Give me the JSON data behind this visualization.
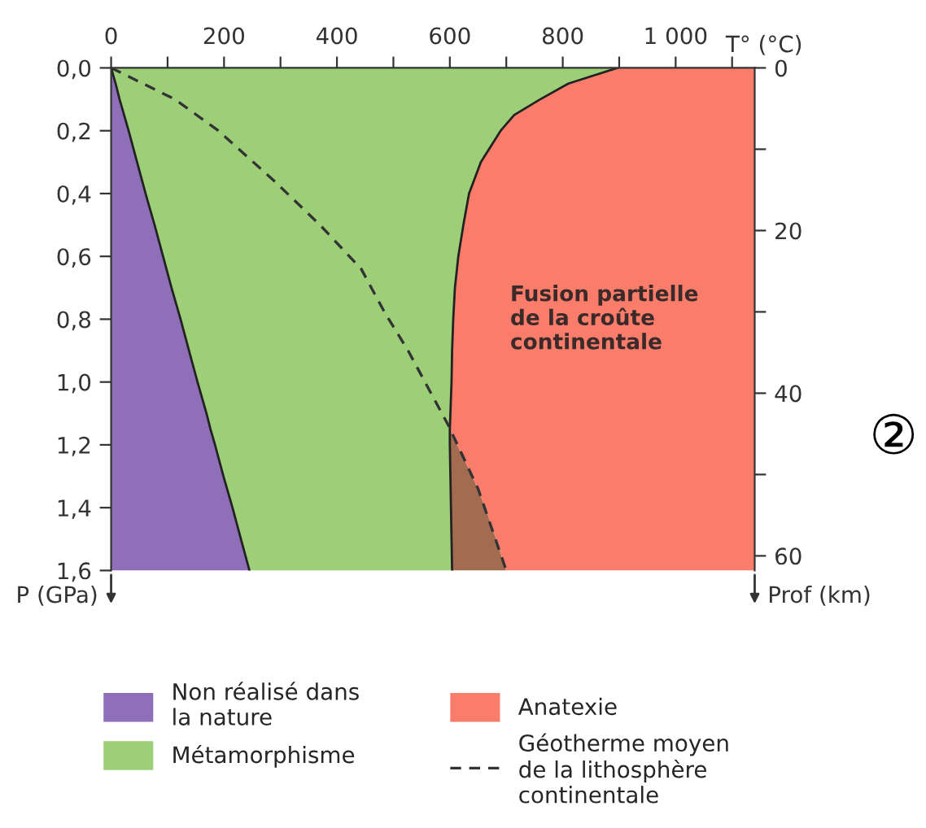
{
  "chart_data": {
    "type": "area",
    "orientation": "horizontal",
    "stacked": true,
    "x": [
      0,
      0.05,
      0.1,
      0.15,
      0.2,
      0.3,
      0.4,
      0.5,
      0.6,
      0.7,
      0.8,
      0.9,
      1.0,
      1.1,
      1.15,
      1.2,
      1.3,
      1.4,
      1.5,
      1.6
    ],
    "series": [
      {
        "name": "Non réalisé dans\nla nature",
        "color": "#8e6fb8",
        "values": [
          0,
          8,
          15,
          23,
          31,
          46,
          61,
          77,
          92,
          107,
          123,
          138,
          153,
          169,
          176,
          184,
          199,
          215,
          230,
          245
        ]
      },
      {
        "name": "Métamorphisme",
        "color": "#9dcf78",
        "values": [
          897,
          802,
          745,
          691,
          659,
          609,
          573,
          547,
          523,
          502,
          483,
          466,
          450,
          432,
          424,
          416,
          402,
          387,
          373,
          359
        ]
      },
      {
        "color": "#a36b50",
        "values": [
          0,
          0,
          0,
          0,
          0,
          0,
          0,
          0,
          0,
          0,
          0,
          0,
          0,
          0,
          0,
          13,
          39,
          61,
          79,
          96
        ]
      },
      {
        "name": "Anatexie",
        "color": "#f97d6a",
        "values": [
          243,
          330,
          380,
          426,
          450,
          485,
          506,
          516,
          525,
          531,
          534,
          536,
          537,
          539,
          540,
          527,
          500,
          477,
          458,
          440
        ]
      },
      {
        "name": "Géotherme moyen\nde la lithosphère\ncontinentale",
        "type": "line",
        "line_style": "dashed",
        "color": "#333333",
        "x": [
          0,
          0.1,
          0.2,
          0.36,
          0.5,
          0.64,
          0.78,
          0.9,
          1.14,
          1.34,
          1.6
        ],
        "values": [
          0,
          113,
          190,
          289,
          370,
          443,
          485,
          526,
          598,
          650,
          700
        ]
      }
    ],
    "xlabel": "T° (°C)",
    "ylabel": "P (GPa)",
    "y2label": "Prof (km)",
    "xlim": [
      0,
      1140
    ],
    "xticks": [
      0,
      {
        "value": 100,
        "label": null
      },
      200,
      {
        "value": 300,
        "label": null
      },
      400,
      {
        "value": 500,
        "label": null
      },
      600,
      {
        "value": 700,
        "label": null
      },
      800,
      {
        "value": 900,
        "label": null
      },
      {
        "value": 1000,
        "label": "1 000"
      },
      {
        "value": 1100,
        "label": null
      }
    ],
    "ylim": [
      1.6,
      0
    ],
    "yticks": [
      {
        "value": 0,
        "label": "0,0"
      },
      {
        "value": 0.2,
        "label": "0,2"
      },
      {
        "value": 0.4,
        "label": "0,4"
      },
      {
        "value": 0.6,
        "label": "0,6"
      },
      {
        "value": 0.8,
        "label": "0,8"
      },
      {
        "value": 1.0,
        "label": "1,0"
      },
      {
        "value": 1.2,
        "label": "1,2"
      },
      {
        "value": 1.4,
        "label": "1,4"
      },
      {
        "value": 1.6,
        "label": "1,6"
      }
    ],
    "y2lim": [
      61.8,
      0
    ],
    "y2ticks": [
      0,
      {
        "value": 10,
        "label": null
      },
      20,
      {
        "value": 30,
        "label": null
      },
      40,
      {
        "value": 50,
        "label": null
      },
      60
    ],
    "annotations": [
      "Fusion partielle\nde la croûte\ncontinentale",
      "②"
    ],
    "legend": "bottom",
    "grid": false
  }
}
